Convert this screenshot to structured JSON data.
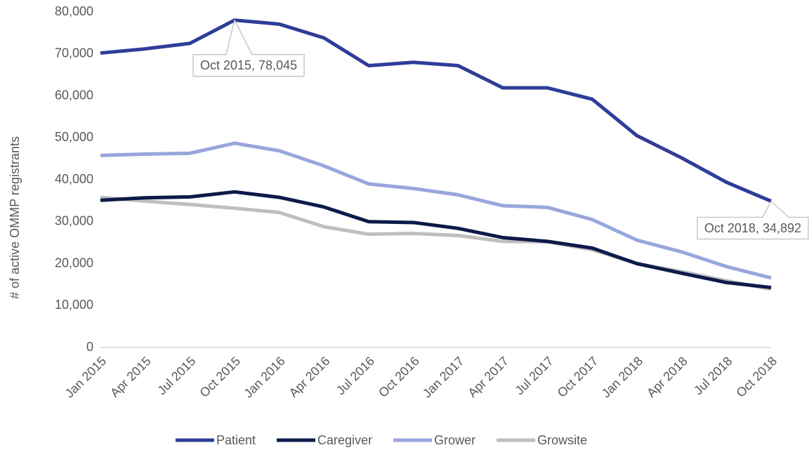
{
  "chart_data": {
    "type": "line",
    "y_axis_label": "# of active OMMP registrants",
    "categories": [
      "Jan 2015",
      "Apr 2015",
      "Jul 2015",
      "Oct 2015",
      "Jan 2016",
      "Apr 2016",
      "Jul 2016",
      "Oct 2016",
      "Jan 2017",
      "Apr 2017",
      "Jul 2017",
      "Oct 2017",
      "Jan 2018",
      "Apr 2018",
      "Jul 2018",
      "Oct 2018"
    ],
    "series": [
      {
        "name": "Patient",
        "color": "#2e3d98",
        "values": [
          70200,
          71200,
          72500,
          78045,
          77100,
          73800,
          67200,
          68000,
          67200,
          61900,
          61900,
          59200,
          50500,
          45200,
          39400,
          34892
        ],
        "value_labels": [
          null,
          null,
          null,
          "Oct 2015, 78,045",
          null,
          null,
          null,
          null,
          null,
          null,
          null,
          null,
          null,
          null,
          null,
          "Oct 2018, 34,892"
        ]
      },
      {
        "name": "Caregiver",
        "color": "#0d1a4a",
        "values": [
          35100,
          35700,
          35900,
          37100,
          35800,
          33500,
          30000,
          29800,
          28400,
          26200,
          25300,
          23700,
          20000,
          17700,
          15500,
          14300
        ]
      },
      {
        "name": "Grower",
        "color": "#98a6dc",
        "values": [
          45800,
          46100,
          46300,
          48700,
          46900,
          43300,
          39000,
          37900,
          36400,
          33800,
          33400,
          30500,
          25600,
          22800,
          19300,
          16600
        ]
      },
      {
        "name": "Growsite",
        "color": "#bfbfbf",
        "values": [
          35800,
          34900,
          34100,
          33200,
          32200,
          28800,
          27000,
          27200,
          26700,
          25300,
          25200,
          23300,
          20000,
          18100,
          15900,
          13900
        ]
      }
    ],
    "ylim": [
      0,
      80000
    ],
    "yticks": [
      0,
      {
        "value": 10000,
        "label": "10,000"
      },
      {
        "value": 20000,
        "label": "20,000"
      },
      {
        "value": 30000,
        "label": "30,000"
      },
      {
        "value": 40000,
        "label": "40,000"
      },
      {
        "value": 50000,
        "label": "50,000"
      },
      {
        "value": 60000,
        "label": "60,000"
      },
      {
        "value": 70000,
        "label": "70,000"
      },
      {
        "value": 80000,
        "label": "80,000"
      }
    ],
    "grid": false,
    "legend": "bottom"
  }
}
